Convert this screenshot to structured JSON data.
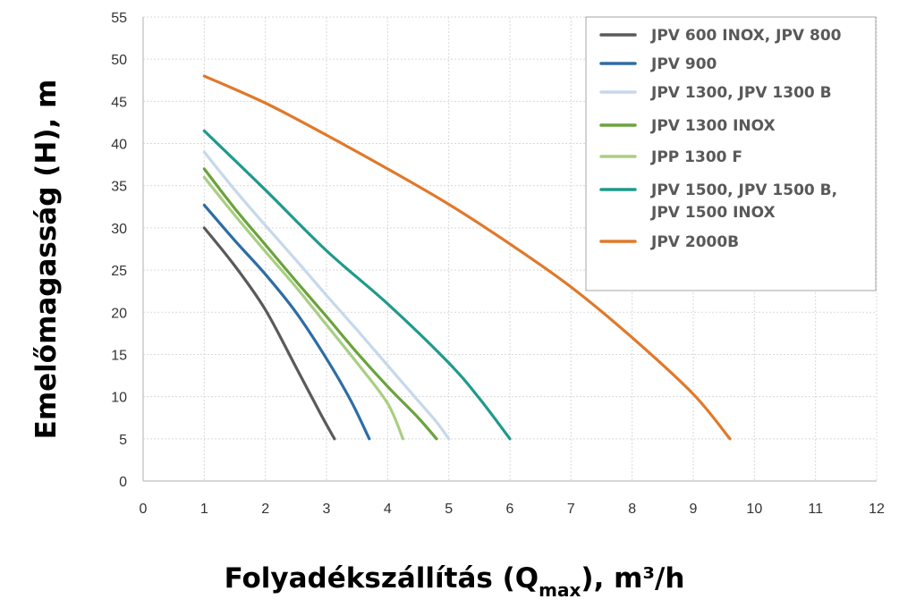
{
  "chart_data": {
    "type": "line",
    "xlabel": {
      "main": "Folyadékszállítás (Q",
      "sub": "max",
      "rest": "), m³/h"
    },
    "ylabel": "Emelőmagasság (H), m",
    "xlim": [
      0,
      12
    ],
    "ylim": [
      0,
      55
    ],
    "xticks": [
      "0",
      "1",
      "2",
      "3",
      "4",
      "5",
      "6",
      "7",
      "8",
      "9",
      "10",
      "11",
      "12"
    ],
    "yticks": [
      "0",
      "5",
      "10",
      "15",
      "20",
      "25",
      "30",
      "35",
      "40",
      "45",
      "50",
      "55"
    ],
    "grid": true,
    "legend_position": "top-right",
    "series": [
      {
        "name": "JPV 600 INOX, JPV 800",
        "color": "#5a5a5a",
        "x": [
          1.0,
          1.5,
          2.0,
          2.5,
          2.9,
          3.13
        ],
        "y": [
          30,
          25.5,
          20.3,
          13.5,
          8.0,
          5
        ]
      },
      {
        "name": "JPV 900",
        "color": "#2e6da4",
        "x": [
          1.0,
          1.5,
          2.0,
          2.5,
          3.0,
          3.4,
          3.7
        ],
        "y": [
          32.7,
          28.5,
          24.5,
          20.0,
          14.5,
          9.5,
          5
        ]
      },
      {
        "name": "JPV 1300, JPV 1300 B",
        "color": "#c5d9ea",
        "x": [
          1.0,
          1.5,
          2.0,
          2.5,
          3.0,
          3.5,
          4.0,
          4.5,
          4.8,
          5.0
        ],
        "y": [
          39,
          34.5,
          30.3,
          26.2,
          22.0,
          17.9,
          13.7,
          9.5,
          7.0,
          5
        ]
      },
      {
        "name": "JPV 1300 INOX",
        "color": "#6ba23d",
        "x": [
          1.0,
          1.5,
          2.0,
          2.5,
          3.0,
          3.5,
          4.0,
          4.5,
          4.8
        ],
        "y": [
          37,
          32.3,
          28.0,
          23.7,
          19.5,
          15.2,
          11.2,
          7.5,
          5
        ]
      },
      {
        "name": "JPP 1300 F",
        "color": "#a9cf82",
        "x": [
          1.0,
          1.5,
          2.0,
          2.5,
          3.0,
          3.5,
          4.0,
          4.25
        ],
        "y": [
          36,
          31.5,
          27.2,
          23.0,
          18.5,
          14.0,
          9.2,
          5
        ]
      },
      {
        "name": "JPV 1500, JPV 1500 B, JPV 1500 INOX",
        "color": "#1f9a8c",
        "x": [
          1.0,
          2.0,
          3.0,
          4.0,
          5.0,
          5.5,
          6.0
        ],
        "y": [
          41.5,
          34.5,
          27.3,
          21.0,
          14.0,
          9.8,
          5
        ]
      },
      {
        "name": "JPV 2000B",
        "color": "#e0792b",
        "x": [
          1.0,
          2.0,
          3.0,
          4.0,
          5.0,
          6.0,
          7.0,
          8.0,
          9.0,
          9.6
        ],
        "y": [
          48,
          44.8,
          41.0,
          37.0,
          32.8,
          28.1,
          23.0,
          17.0,
          10.3,
          5
        ]
      }
    ]
  }
}
